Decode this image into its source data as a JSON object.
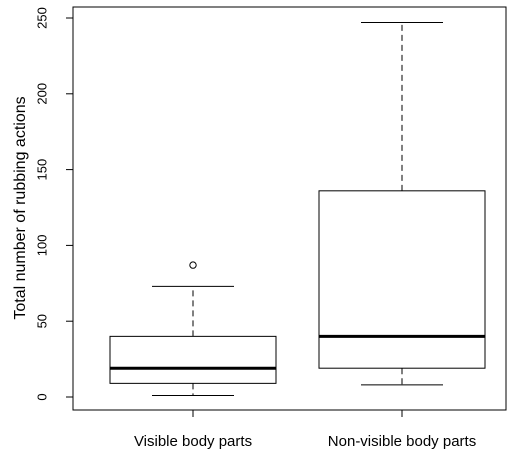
{
  "chart_data": {
    "type": "box",
    "title": "",
    "xlabel": "",
    "ylabel": "Total number of rubbing actions",
    "ylim": [
      -8,
      252
    ],
    "yticks": [
      0,
      50,
      100,
      150,
      200,
      250
    ],
    "grid": false,
    "categories": [
      "Visible body parts",
      "Non-visible body parts"
    ],
    "boxes": [
      {
        "category": "Visible body parts",
        "whisker_low": 1,
        "q1": 9,
        "median": 19,
        "q3": 40,
        "whisker_high": 73,
        "outliers": [
          87
        ]
      },
      {
        "category": "Non-visible body parts",
        "whisker_low": 8,
        "q1": 19,
        "median": 40,
        "q3": 136,
        "whisker_high": 247,
        "outliers": []
      }
    ]
  }
}
